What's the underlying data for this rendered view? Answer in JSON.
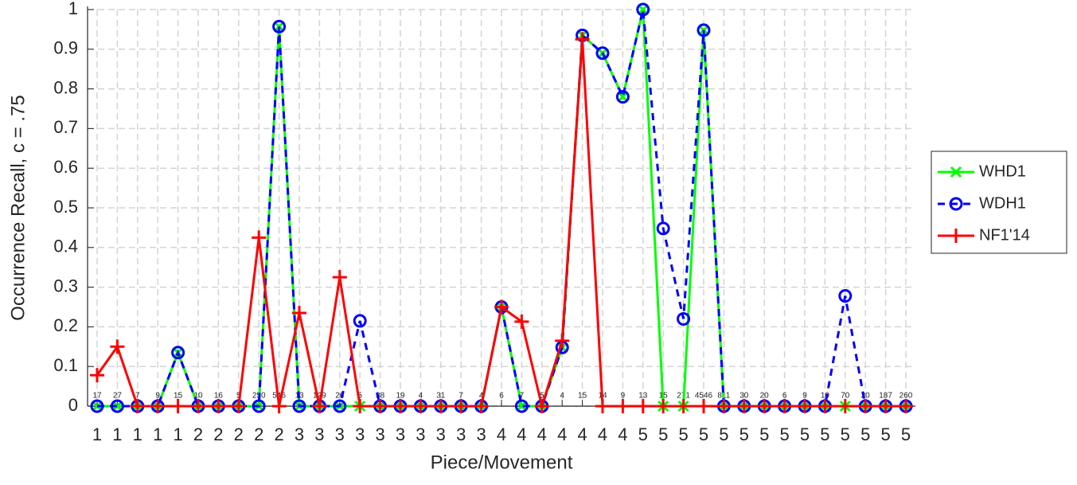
{
  "chart_data": {
    "type": "line",
    "x_label": "Piece/Movement",
    "y_label": "Occurrence Recall, c = .75",
    "categories": [
      "1",
      "1",
      "1",
      "1",
      "1",
      "2",
      "2",
      "2",
      "2",
      "2",
      "3",
      "3",
      "3",
      "3",
      "3",
      "3",
      "3",
      "3",
      "3",
      "3",
      "4",
      "4",
      "4",
      "4",
      "4",
      "4",
      "4",
      "5",
      "5",
      "5",
      "5",
      "5",
      "5",
      "5",
      "5",
      "5",
      "5",
      "5",
      "5",
      "5",
      "5"
    ],
    "point_labels": [
      17,
      27,
      7,
      9,
      15,
      10,
      16,
      5,
      250,
      546,
      13,
      129,
      26,
      5,
      38,
      19,
      4,
      31,
      7,
      4,
      6,
      7,
      5,
      4,
      15,
      14,
      9,
      13,
      15,
      271,
      4546,
      811,
      30,
      20,
      6,
      9,
      10,
      70,
      20,
      187,
      260
    ],
    "series": [
      {
        "name": "WHD1",
        "color": "#00ff00",
        "marker": "x",
        "line_style": "solid",
        "values": [
          0,
          0,
          0,
          0,
          0.135,
          0,
          0,
          0,
          0,
          0.957,
          0,
          0,
          0,
          0,
          0,
          0,
          0,
          0,
          0,
          0,
          0.25,
          0,
          0,
          0.148,
          0.935,
          0.89,
          0.78,
          1.0,
          0,
          0,
          0.948,
          0,
          0,
          0,
          0,
          0,
          0,
          0,
          0,
          0,
          0
        ]
      },
      {
        "name": "WDH1",
        "color": "#0000ff",
        "marker": "o",
        "line_style": "dashed",
        "values": [
          0,
          0,
          0,
          0,
          0.135,
          0,
          0,
          0,
          0,
          0.957,
          0,
          0,
          0,
          0.215,
          0,
          0,
          0,
          0,
          0,
          0,
          0.25,
          0,
          0,
          0.148,
          0.935,
          0.89,
          0.78,
          1.0,
          0.448,
          0.22,
          0.948,
          0,
          0,
          0,
          0,
          0,
          0,
          0.278,
          0,
          0,
          0
        ]
      },
      {
        "name": "NF1'14",
        "color": "#ff0000",
        "marker": "+",
        "line_style": "solid",
        "values": [
          0.078,
          0.15,
          0,
          0,
          0,
          0,
          0,
          0,
          0.425,
          0,
          0.235,
          0,
          0.325,
          0,
          0,
          0,
          0,
          0,
          0,
          0,
          0.25,
          0.213,
          0,
          0.165,
          0.925,
          0,
          0,
          0,
          0,
          0,
          0,
          0,
          0,
          0,
          0,
          0,
          0,
          0,
          0,
          0,
          0
        ]
      }
    ],
    "ylim": [
      0,
      1
    ],
    "yticks": [
      0,
      0.1,
      0.2,
      0.3,
      0.4,
      0.5,
      0.6,
      0.7,
      0.8,
      0.9,
      1
    ],
    "grid": true,
    "legend": "right"
  }
}
